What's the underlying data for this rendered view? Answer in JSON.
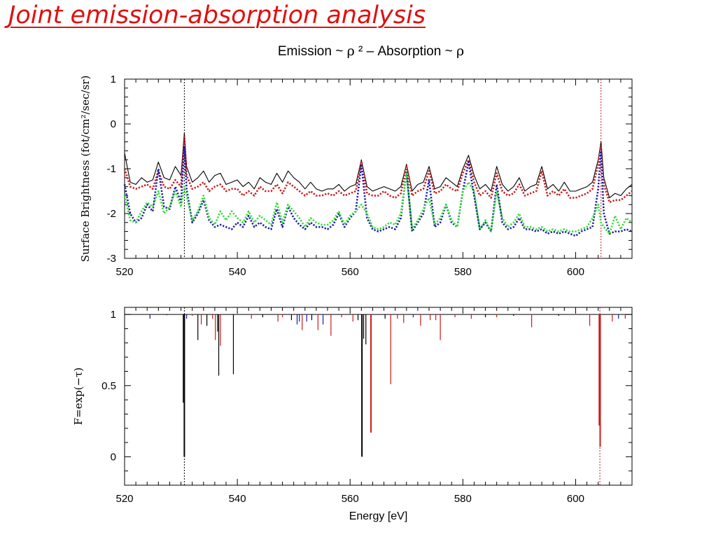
{
  "slide": {
    "title": "Joint emission-absorption analysis",
    "subtitle_parts": [
      "Emission ~ ",
      "ρ",
      " ² – Absorption ~ ",
      "ρ"
    ]
  },
  "colors": {
    "title": "#e01010",
    "black": "#000000",
    "red": "#cc1a1a",
    "blue": "#1a1aa8",
    "green": "#33dd33"
  },
  "chart_data": [
    {
      "type": "line",
      "ylabel": "Surface Brightness (fot/cm²/sec/sr)",
      "xlabel": "",
      "xlim": [
        520,
        610
      ],
      "ylim": [
        -3,
        1
      ],
      "x_ticks": [
        520,
        540,
        560,
        580,
        600
      ],
      "y_ticks": [
        1,
        0,
        -1,
        -2,
        -3
      ],
      "vlines": [
        {
          "x": 530.6,
          "color": "black",
          "style": "dotted"
        },
        {
          "x": 604.5,
          "color": "red",
          "style": "dotted"
        }
      ],
      "x": [
        520,
        521,
        522,
        523,
        524,
        525,
        526,
        527,
        528,
        529,
        530,
        530.6,
        531,
        532,
        533,
        534,
        535,
        536,
        537,
        538,
        539,
        540,
        541,
        542,
        543,
        544,
        545,
        546,
        547,
        548,
        549,
        550,
        551,
        552,
        553,
        554,
        555,
        556,
        557,
        558,
        559,
        560,
        561,
        562,
        563,
        564,
        565,
        566,
        567,
        568,
        569,
        570,
        571,
        572,
        573,
        574,
        575,
        576,
        577,
        578,
        579,
        580,
        581,
        582,
        583,
        584,
        585,
        586,
        587,
        588,
        589,
        590,
        591,
        592,
        593,
        594,
        595,
        596,
        597,
        598,
        599,
        600,
        601,
        602,
        603,
        604,
        604.5,
        605,
        606,
        607,
        608,
        609,
        610
      ],
      "series": [
        {
          "color": "black",
          "style": "solid",
          "values": [
            -0.65,
            -1.3,
            -1.35,
            -1.2,
            -1.3,
            -1.25,
            -0.85,
            -1.2,
            -1.25,
            -0.95,
            -1.15,
            -0.2,
            -0.95,
            -1.3,
            -1.2,
            -1.05,
            -1.3,
            -1.15,
            -1.1,
            -1.35,
            -1.3,
            -1.25,
            -1.4,
            -1.3,
            -1.45,
            -1.2,
            -1.3,
            -1.35,
            -1.1,
            -1.3,
            -1.05,
            -1.2,
            -1.3,
            -1.45,
            -1.3,
            -1.45,
            -1.5,
            -1.45,
            -1.45,
            -1.35,
            -1.5,
            -1.4,
            -1.35,
            -0.8,
            -1.4,
            -1.5,
            -1.45,
            -1.4,
            -1.45,
            -1.5,
            -1.4,
            -0.9,
            -1.5,
            -1.35,
            -1.3,
            -0.95,
            -1.45,
            -1.4,
            -1.2,
            -1.3,
            -1.4,
            -1.0,
            -0.7,
            -1.15,
            -1.45,
            -1.35,
            -1.5,
            -0.95,
            -1.35,
            -1.5,
            -1.4,
            -1.2,
            -1.5,
            -1.4,
            -1.35,
            -0.95,
            -1.45,
            -1.35,
            -1.5,
            -1.3,
            -1.5,
            -1.5,
            -1.45,
            -1.4,
            -1.3,
            -0.8,
            -0.4,
            -1.2,
            -1.65,
            -1.55,
            -1.6,
            -1.45,
            -1.35
          ]
        },
        {
          "color": "red",
          "style": "dotted",
          "values": [
            -1.0,
            -1.4,
            -1.45,
            -1.4,
            -1.35,
            -1.45,
            -1.05,
            -1.4,
            -1.45,
            -1.25,
            -1.4,
            -0.3,
            -1.15,
            -1.45,
            -1.4,
            -1.3,
            -1.5,
            -1.4,
            -1.35,
            -1.5,
            -1.45,
            -1.45,
            -1.6,
            -1.5,
            -1.6,
            -1.4,
            -1.5,
            -1.5,
            -1.35,
            -1.55,
            -1.3,
            -1.4,
            -1.5,
            -1.6,
            -1.5,
            -1.6,
            -1.6,
            -1.55,
            -1.6,
            -1.5,
            -1.6,
            -1.55,
            -1.5,
            -0.85,
            -1.55,
            -1.6,
            -1.6,
            -1.5,
            -1.6,
            -1.65,
            -1.55,
            -0.95,
            -1.6,
            -1.5,
            -1.45,
            -1.05,
            -1.55,
            -1.5,
            -1.35,
            -1.45,
            -1.5,
            -1.1,
            -0.8,
            -1.3,
            -1.6,
            -1.5,
            -1.65,
            -1.1,
            -1.5,
            -1.6,
            -1.55,
            -1.35,
            -1.6,
            -1.55,
            -1.5,
            -1.05,
            -1.6,
            -1.5,
            -1.6,
            -1.45,
            -1.65,
            -1.65,
            -1.6,
            -1.55,
            -1.45,
            -0.9,
            -0.5,
            -1.35,
            -1.75,
            -1.7,
            -1.7,
            -1.6,
            -1.5
          ]
        },
        {
          "color": "blue",
          "style": "dotted",
          "values": [
            -1.35,
            -2.0,
            -2.2,
            -2.1,
            -1.8,
            -1.95,
            -1.0,
            -1.85,
            -1.9,
            -1.4,
            -1.75,
            -0.5,
            -1.45,
            -2.2,
            -2.0,
            -1.7,
            -2.15,
            -2.3,
            -2.25,
            -2.3,
            -2.35,
            -2.2,
            -2.3,
            -2.05,
            -2.3,
            -2.2,
            -2.3,
            -2.35,
            -1.9,
            -2.3,
            -1.85,
            -2.1,
            -2.25,
            -2.35,
            -2.2,
            -2.3,
            -2.3,
            -2.35,
            -2.25,
            -2.0,
            -2.3,
            -2.1,
            -1.95,
            -0.9,
            -2.1,
            -2.35,
            -2.4,
            -2.35,
            -2.3,
            -2.35,
            -2.1,
            -1.05,
            -2.4,
            -2.2,
            -2.0,
            -1.25,
            -2.3,
            -2.2,
            -1.8,
            -2.2,
            -2.3,
            -1.5,
            -0.85,
            -1.6,
            -2.35,
            -2.2,
            -2.4,
            -1.35,
            -2.2,
            -2.35,
            -2.3,
            -2.1,
            -2.35,
            -2.35,
            -2.4,
            -2.35,
            -2.45,
            -2.4,
            -2.45,
            -2.4,
            -2.45,
            -2.5,
            -2.4,
            -2.35,
            -2.3,
            -1.45,
            -0.6,
            -2.0,
            -2.45,
            -2.4,
            -2.4,
            -2.35,
            -2.4
          ]
        },
        {
          "color": "green",
          "style": "dotted",
          "values": [
            -1.6,
            -2.15,
            -2.2,
            -1.95,
            -1.75,
            -1.85,
            -1.5,
            -2.0,
            -1.85,
            -1.5,
            -1.85,
            -1.4,
            -1.6,
            -2.15,
            -1.95,
            -1.6,
            -2.1,
            -2.25,
            -1.95,
            -2.15,
            -1.95,
            -2.1,
            -2.2,
            -1.95,
            -2.2,
            -2.05,
            -2.15,
            -2.25,
            -1.75,
            -2.2,
            -1.8,
            -1.95,
            -2.1,
            -2.3,
            -2.1,
            -2.2,
            -2.25,
            -2.25,
            -2.15,
            -1.95,
            -2.25,
            -2.05,
            -1.95,
            -1.8,
            -2.0,
            -2.3,
            -2.35,
            -2.3,
            -2.2,
            -2.25,
            -2.0,
            -1.1,
            -2.35,
            -2.15,
            -1.9,
            -1.65,
            -2.25,
            -2.1,
            -1.8,
            -2.15,
            -2.3,
            -1.5,
            -1.3,
            -1.5,
            -2.35,
            -2.15,
            -2.4,
            -1.5,
            -2.1,
            -2.3,
            -2.2,
            -2.0,
            -2.3,
            -2.3,
            -2.35,
            -2.3,
            -2.4,
            -2.35,
            -2.4,
            -2.35,
            -2.4,
            -2.4,
            -2.35,
            -2.3,
            -2.1,
            -1.8,
            -2.2,
            -2.3,
            -2.45,
            -2.05,
            -2.35,
            -2.1,
            -2.2
          ]
        }
      ]
    },
    {
      "type": "line",
      "ylabel": "F=exp(−τ)",
      "xlabel": "Energy [eV]",
      "xlim": [
        520,
        610
      ],
      "ylim": [
        -0.2,
        1.05
      ],
      "x_ticks": [
        520,
        540,
        560,
        580,
        600
      ],
      "y_ticks": [
        1,
        0.5,
        0
      ],
      "vlines": [
        {
          "x": 530.6,
          "color": "black",
          "style": "dotted"
        },
        {
          "x": 604.3,
          "color": "red",
          "style": "dotted"
        }
      ],
      "absorption_lines": [
        {
          "x": 524.5,
          "depth": 0.97,
          "color": "blue"
        },
        {
          "x": 527.5,
          "depth": 0.995,
          "color": "black"
        },
        {
          "x": 530.4,
          "depth": 0.38,
          "color": "black"
        },
        {
          "x": 530.6,
          "depth": 0.0,
          "color": "black"
        },
        {
          "x": 531.0,
          "depth": 0.97,
          "color": "blue"
        },
        {
          "x": 532.0,
          "depth": 0.99,
          "color": "red"
        },
        {
          "x": 533.0,
          "depth": 0.82,
          "color": "black"
        },
        {
          "x": 533.6,
          "depth": 0.93,
          "color": "red"
        },
        {
          "x": 534.6,
          "depth": 0.92,
          "color": "black"
        },
        {
          "x": 535.6,
          "depth": 0.97,
          "color": "red"
        },
        {
          "x": 536.1,
          "depth": 0.82,
          "color": "red"
        },
        {
          "x": 536.5,
          "depth": 0.88,
          "color": "black"
        },
        {
          "x": 536.7,
          "depth": 0.57,
          "color": "black"
        },
        {
          "x": 537.0,
          "depth": 0.78,
          "color": "red"
        },
        {
          "x": 539.3,
          "depth": 0.58,
          "color": "black"
        },
        {
          "x": 542.5,
          "depth": 0.97,
          "color": "red"
        },
        {
          "x": 544.5,
          "depth": 0.98,
          "color": "black"
        },
        {
          "x": 547.2,
          "depth": 0.95,
          "color": "red"
        },
        {
          "x": 548.0,
          "depth": 0.98,
          "color": "red"
        },
        {
          "x": 549.6,
          "depth": 0.96,
          "color": "black"
        },
        {
          "x": 550.6,
          "depth": 0.93,
          "color": "blue"
        },
        {
          "x": 551.0,
          "depth": 0.95,
          "color": "blue"
        },
        {
          "x": 551.5,
          "depth": 0.89,
          "color": "red"
        },
        {
          "x": 552.3,
          "depth": 0.95,
          "color": "blue"
        },
        {
          "x": 553.2,
          "depth": 0.96,
          "color": "black"
        },
        {
          "x": 554.3,
          "depth": 0.89,
          "color": "red"
        },
        {
          "x": 555.2,
          "depth": 0.93,
          "color": "blue"
        },
        {
          "x": 556.6,
          "depth": 0.85,
          "color": "red"
        },
        {
          "x": 558.5,
          "depth": 0.98,
          "color": "red"
        },
        {
          "x": 560.5,
          "depth": 0.95,
          "color": "red"
        },
        {
          "x": 561.4,
          "depth": 0.96,
          "color": "black"
        },
        {
          "x": 562.1,
          "depth": 0.0,
          "color": "black"
        },
        {
          "x": 562.4,
          "depth": 0.83,
          "color": "black"
        },
        {
          "x": 562.8,
          "depth": 0.79,
          "color": "black"
        },
        {
          "x": 563.7,
          "depth": 0.17,
          "color": "red"
        },
        {
          "x": 566.2,
          "depth": 0.97,
          "color": "black"
        },
        {
          "x": 567.2,
          "depth": 0.51,
          "color": "red"
        },
        {
          "x": 568.4,
          "depth": 0.97,
          "color": "red"
        },
        {
          "x": 569.5,
          "depth": 0.94,
          "color": "red"
        },
        {
          "x": 571.2,
          "depth": 0.98,
          "color": "blue"
        },
        {
          "x": 572.5,
          "depth": 0.92,
          "color": "red"
        },
        {
          "x": 574.2,
          "depth": 0.96,
          "color": "red"
        },
        {
          "x": 575.2,
          "depth": 0.96,
          "color": "red"
        },
        {
          "x": 576.0,
          "depth": 0.82,
          "color": "red"
        },
        {
          "x": 578.6,
          "depth": 0.98,
          "color": "red"
        },
        {
          "x": 581.5,
          "depth": 0.97,
          "color": "red"
        },
        {
          "x": 584.0,
          "depth": 0.98,
          "color": "black"
        },
        {
          "x": 586.0,
          "depth": 0.98,
          "color": "red"
        },
        {
          "x": 589.0,
          "depth": 0.99,
          "color": "black"
        },
        {
          "x": 592.2,
          "depth": 0.91,
          "color": "red"
        },
        {
          "x": 597.0,
          "depth": 0.99,
          "color": "black"
        },
        {
          "x": 602.5,
          "depth": 0.92,
          "color": "red"
        },
        {
          "x": 604.2,
          "depth": 0.22,
          "color": "red"
        },
        {
          "x": 604.35,
          "depth": 0.07,
          "color": "red"
        },
        {
          "x": 606.5,
          "depth": 0.95,
          "color": "red"
        },
        {
          "x": 607.6,
          "depth": 0.97,
          "color": "blue"
        },
        {
          "x": 608.8,
          "depth": 0.97,
          "color": "red"
        }
      ]
    }
  ]
}
